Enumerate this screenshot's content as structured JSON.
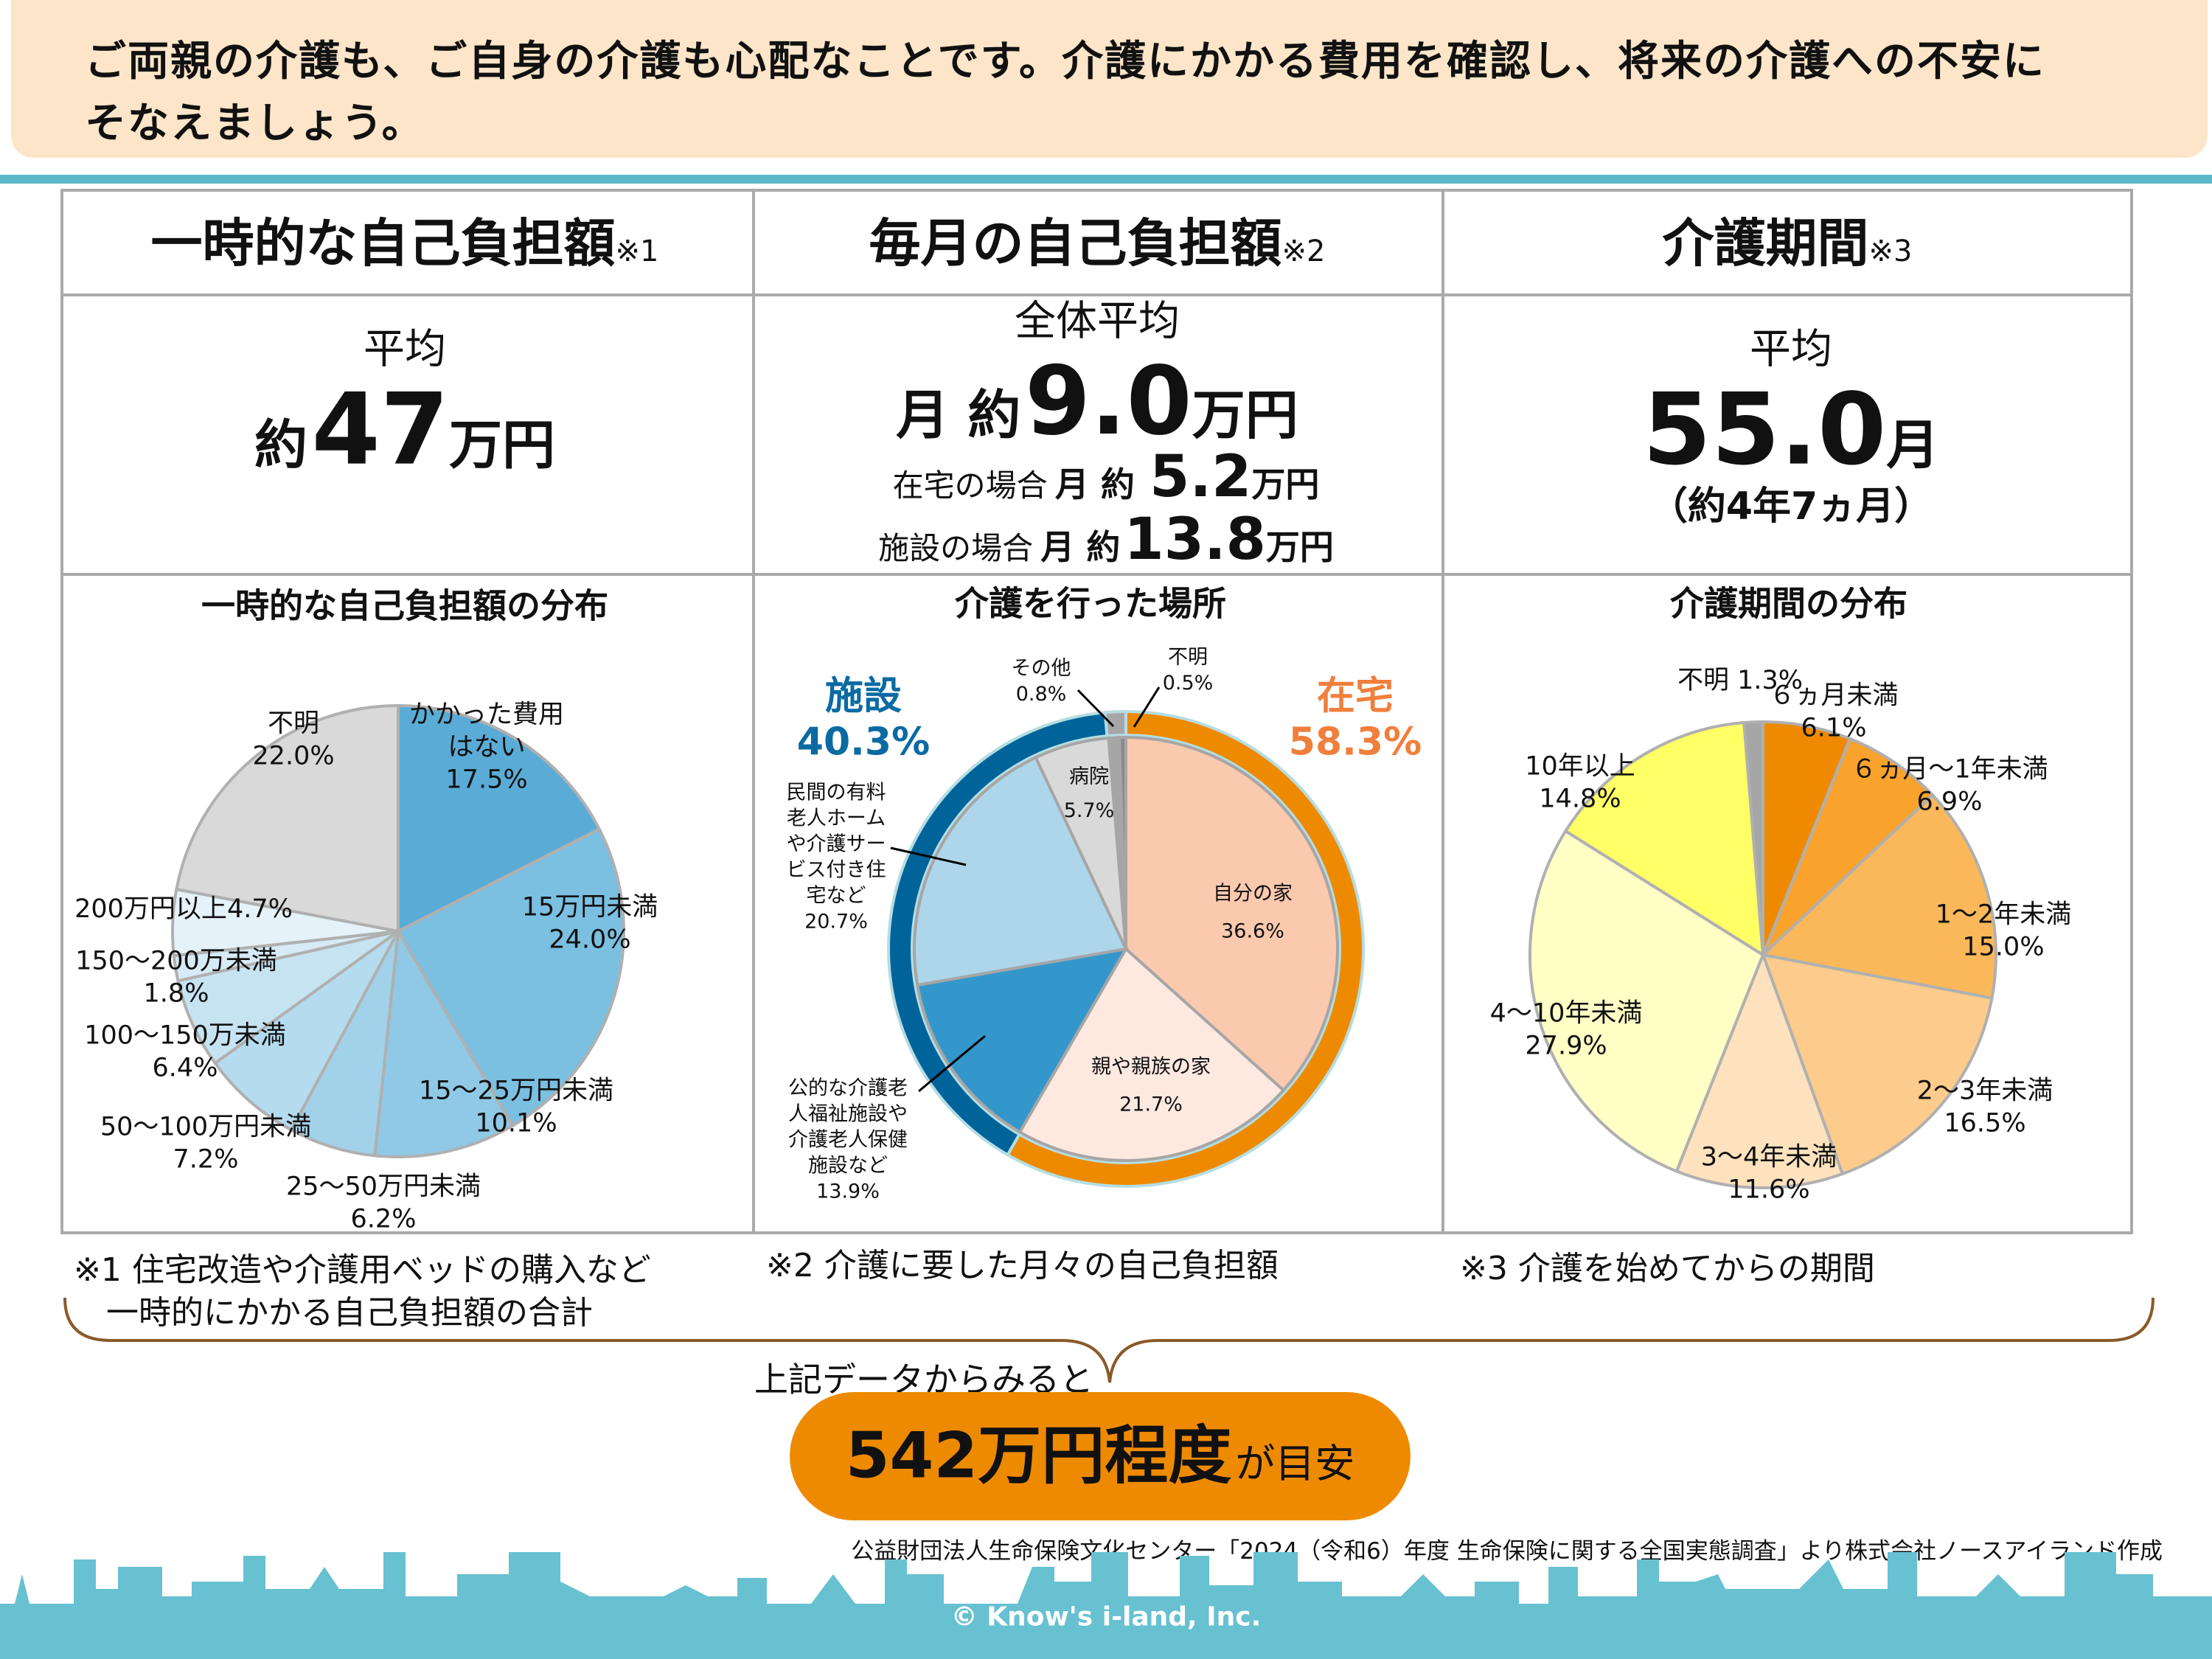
{
  "banner": {
    "line1": "ご両親の介護も、ご自身の介護も心配なことです。介護にかかる費用を確認し、将来の介護への不安に",
    "line2": "そなえましょう。"
  },
  "headers": [
    {
      "title": "一時的な自己負担額",
      "note": "※1"
    },
    {
      "title": "毎月の自己負担額",
      "note": "※2"
    },
    {
      "title": "介護期間",
      "note": "※3"
    }
  ],
  "stats": {
    "col1": {
      "label": "平均",
      "prefix": "約",
      "value": "47",
      "unit": "万円"
    },
    "col2": {
      "label": "全体平均",
      "prefix": "月 約",
      "value": "9.0",
      "unit": "万円",
      "home_label": "在宅の場合",
      "home_prefix": "月 約",
      "home_value": "5.2",
      "home_unit": "万円",
      "facility_label": "施設の場合",
      "facility_prefix": "月 約",
      "facility_value": "13.8",
      "facility_unit": "万円"
    },
    "col3": {
      "label": "平均",
      "value": "55.0",
      "unit": "月",
      "sub": "（約4年7ヵ月）"
    }
  },
  "chart_data": [
    {
      "type": "pie",
      "title": "一時的な自己負担額の分布",
      "labels": [
        "かかった費用はない",
        "15万円未満",
        "15～25万円未満",
        "25～50万円未満",
        "50～100万円未満",
        "100～150万未満",
        "150～200万未満",
        "200万円以上",
        "不明"
      ],
      "values": [
        17.5,
        24.0,
        10.1,
        6.2,
        7.2,
        6.4,
        1.8,
        4.7,
        22.0
      ],
      "value_labels": [
        "17.5%",
        "24.0%",
        "10.1%",
        "6.2%",
        "7.2%",
        "6.4%",
        "1.8%",
        "4.7%",
        "22.0%"
      ],
      "colors": [
        "#5aacd6",
        "#7bbfe1",
        "#8fc9e6",
        "#a2d1ea",
        "#b5dbef",
        "#c6e3f2",
        "#d6ebf6",
        "#e6f2f9",
        "#d9d9d9"
      ]
    },
    {
      "type": "pie",
      "title": "介護を行った場所",
      "labels": [
        "自分の家",
        "親や親族の家",
        "公的な介護老人福祉施設や介護老人保健施設など",
        "民間の有料老人ホームや介護サービス付き住宅など",
        "病院",
        "その他",
        "不明"
      ],
      "values": [
        36.6,
        21.7,
        13.9,
        20.7,
        5.7,
        0.8,
        0.5
      ],
      "value_labels": [
        "36.6%",
        "21.7%",
        "13.9%",
        "20.7%",
        "5.7%",
        "0.8%",
        "0.5%"
      ],
      "colors": [
        "#fbc9ae",
        "#fde9e0",
        "#3497cb",
        "#aed6ea",
        "#d9d9d9",
        "#a6a6a6",
        "#8a8a8a"
      ],
      "ring": {
        "labels": [
          "在宅",
          "施設"
        ],
        "values": [
          58.3,
          40.3
        ],
        "value_labels": [
          "58.3%",
          "40.3%"
        ],
        "colors": [
          "#ee8a00",
          "#00649a"
        ]
      }
    },
    {
      "type": "pie",
      "title": "介護期間の分布",
      "labels": [
        "６ヵ月未満",
        "６ヵ月～1年未満",
        "1～2年未満",
        "2～3年未満",
        "3～4年未満",
        "4～10年未満",
        "10年以上",
        "不明"
      ],
      "values": [
        6.1,
        6.9,
        15.0,
        16.5,
        11.6,
        27.9,
        14.8,
        1.3
      ],
      "value_labels": [
        "6.1%",
        "6.9%",
        "15.0%",
        "16.5%",
        "11.6%",
        "27.9%",
        "14.8%",
        "1.3%"
      ],
      "colors": [
        "#ef8a00",
        "#f9a22c",
        "#fbb85a",
        "#fdcc8c",
        "#fde2bd",
        "#ffffc6",
        "#ffff66",
        "#a6a6a6"
      ]
    }
  ],
  "mid_labels": {
    "private_lines": [
      "民間の有料",
      "老人ホーム",
      "や介護サー",
      "ビス付き住",
      "宅など"
    ],
    "public_lines": [
      "公的な介護老",
      "人福祉施設や",
      "介護老人保健",
      "施設など"
    ]
  },
  "notes": {
    "n1a": "※1 住宅改造や介護用ベッドの購入など",
    "n1b": "　一時的にかかる自己負担額の合計",
    "n2": "※2 介護に要した月々の自己負担額",
    "n3": "※3 介護を始めてからの期間"
  },
  "summary": {
    "lead": "上記データからみると",
    "value": "542万円程度",
    "suffix": "が目安"
  },
  "source": "公益財団法人生命保険文化センター「2024（令和6）年度 生命保険に関する全国実態調査」より株式会社ノースアイランド作成",
  "copyright": "© Know's i-land, Inc."
}
